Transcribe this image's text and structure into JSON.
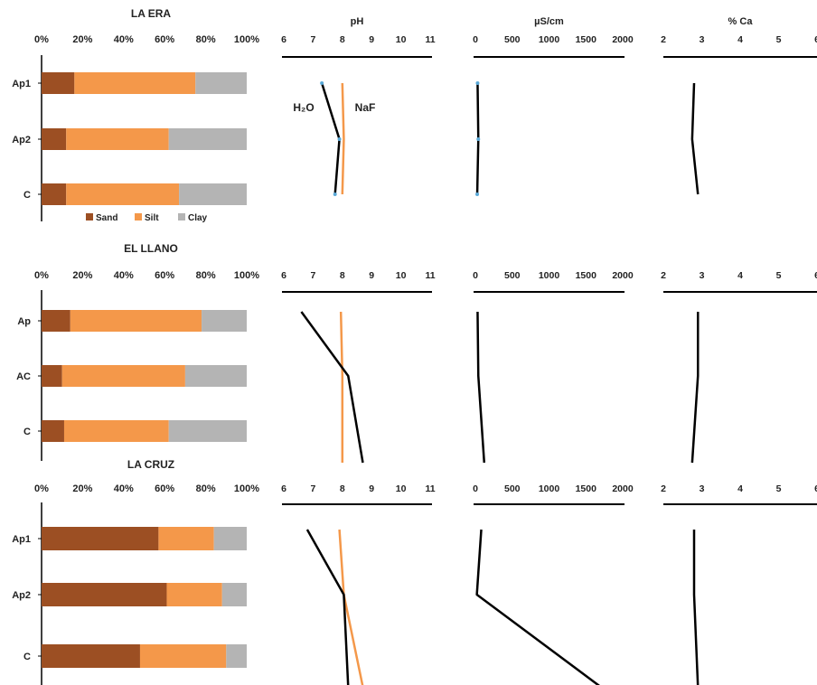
{
  "chart_data": {
    "type": "soil-profile-panels",
    "legend": [
      {
        "name": "Sand",
        "color": "#9c4f23"
      },
      {
        "name": "Silt",
        "color": "#f4984a"
      },
      {
        "name": "Clay",
        "color": "#b4b4b4"
      }
    ],
    "colors": {
      "h2o": "#000000",
      "naf": "#f4984a",
      "marker": "#5aa9d8"
    },
    "ph_series_labels": {
      "h2o": "H₂O",
      "naf": "NaF"
    },
    "axes": {
      "texture": {
        "ticks": [
          "0%",
          "20%",
          "40%",
          "60%",
          "80%",
          "100%"
        ],
        "range": [
          0,
          100
        ]
      },
      "ph": {
        "title": "pH",
        "ticks": [
          "6",
          "7",
          "8",
          "9",
          "10",
          "11"
        ],
        "range": [
          6,
          11
        ]
      },
      "ec": {
        "title": "µS/cm",
        "ticks": [
          "0",
          "500",
          "1000",
          "1500",
          "2000"
        ],
        "range": [
          0,
          2000
        ]
      },
      "ca": {
        "title": "% Ca",
        "ticks": [
          "2",
          "3",
          "4",
          "5",
          "6"
        ],
        "range": [
          2,
          6
        ]
      }
    },
    "sites": [
      {
        "name": "LA ERA",
        "horizons": [
          "Ap1",
          "Ap2",
          "C"
        ],
        "sand": [
          16,
          12,
          12
        ],
        "silt": [
          59,
          50,
          55
        ],
        "clay": [
          25,
          38,
          33
        ],
        "ph_h2o": [
          7.3,
          7.9,
          7.75
        ],
        "ph_naf": [
          8.0,
          8.05,
          8.0
        ],
        "ec": [
          30,
          40,
          25
        ],
        "ca": [
          2.8,
          2.75,
          2.9
        ],
        "markers": true
      },
      {
        "name": "EL LLANO",
        "horizons": [
          "Ap",
          "AC",
          "C"
        ],
        "sand": [
          14,
          10,
          11
        ],
        "silt": [
          64,
          60,
          51
        ],
        "clay": [
          22,
          30,
          38
        ],
        "ph_h2o": [
          6.6,
          8.2,
          8.7
        ],
        "ph_naf": [
          7.95,
          8.0,
          8.0
        ],
        "ec": [
          30,
          40,
          120
        ],
        "ca": [
          2.9,
          2.9,
          2.75
        ],
        "markers": false
      },
      {
        "name": "LA CRUZ",
        "horizons": [
          "Ap1",
          "Ap2",
          "C"
        ],
        "sand": [
          57,
          61,
          48
        ],
        "silt": [
          27,
          27,
          42
        ],
        "clay": [
          16,
          12,
          10
        ],
        "ph_h2o": [
          6.8,
          8.05,
          8.2
        ],
        "ph_naf": [
          7.9,
          8.05,
          8.7
        ],
        "ec": [
          80,
          20,
          1700
        ],
        "ca": [
          2.8,
          2.8,
          2.9
        ],
        "markers": false
      }
    ]
  }
}
